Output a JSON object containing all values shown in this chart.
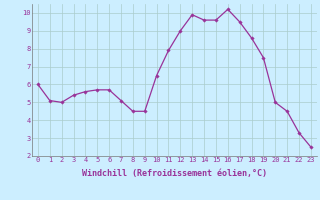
{
  "x": [
    0,
    1,
    2,
    3,
    4,
    5,
    6,
    7,
    8,
    9,
    10,
    11,
    12,
    13,
    14,
    15,
    16,
    17,
    18,
    19,
    20,
    21,
    22,
    23
  ],
  "y": [
    6.0,
    5.1,
    5.0,
    5.4,
    5.6,
    5.7,
    5.7,
    5.1,
    4.5,
    4.5,
    6.5,
    7.9,
    9.0,
    9.9,
    9.6,
    9.6,
    10.2,
    9.5,
    8.6,
    7.5,
    5.0,
    4.5,
    3.3,
    2.5
  ],
  "line_color": "#993399",
  "marker": "D",
  "marker_size": 1.8,
  "bg_color": "#cceeff",
  "grid_color": "#aacccc",
  "xlabel": "Windchill (Refroidissement éolien,°C)",
  "ylim": [
    2,
    10.5
  ],
  "xlim": [
    -0.5,
    23.5
  ],
  "yticks": [
    2,
    3,
    4,
    5,
    6,
    7,
    8,
    9,
    10
  ],
  "xticks": [
    0,
    1,
    2,
    3,
    4,
    5,
    6,
    7,
    8,
    9,
    10,
    11,
    12,
    13,
    14,
    15,
    16,
    17,
    18,
    19,
    20,
    21,
    22,
    23
  ],
  "tick_color": "#993399",
  "tick_fontsize": 5.0,
  "xlabel_fontsize": 6.0,
  "line_width": 0.9
}
